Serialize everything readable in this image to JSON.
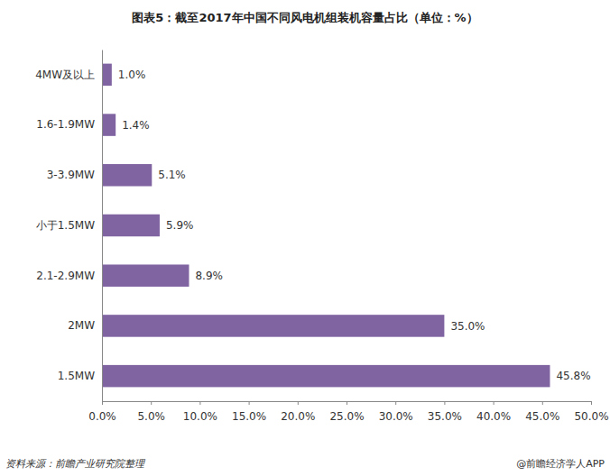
{
  "chart_data": {
    "type": "bar",
    "orientation": "horizontal",
    "title": "图表5：截至2017年中国不同风电机组装机容量占比（单位：%）",
    "categories": [
      "4MW及以上",
      "1.6-1.9MW",
      "3-3.9MW",
      "小于1.5MW",
      "2.1-2.9MW",
      "2MW",
      "1.5MW"
    ],
    "values": [
      1.0,
      1.4,
      5.1,
      5.9,
      8.9,
      35.0,
      45.8
    ],
    "value_labels": [
      "1.0%",
      "1.4%",
      "5.1%",
      "5.9%",
      "8.9%",
      "35.0%",
      "45.8%"
    ],
    "color": "#8064a2",
    "xlim": [
      0,
      50
    ],
    "xticks": [
      {
        "value": 0,
        "label": "0.0%"
      },
      {
        "value": 5,
        "label": "5.0%"
      },
      {
        "value": 10,
        "label": "10.0%"
      },
      {
        "value": 15,
        "label": "15.0%"
      },
      {
        "value": 20,
        "label": "20.0%"
      },
      {
        "value": 25,
        "label": "25.0%"
      },
      {
        "value": 30,
        "label": "30.0%"
      },
      {
        "value": 35,
        "label": "35.0%"
      },
      {
        "value": 40,
        "label": "40.0%"
      },
      {
        "value": 45,
        "label": "45.0%"
      },
      {
        "value": 50,
        "label": "50.0%"
      }
    ],
    "grid": false,
    "data_labels": true,
    "annotations": [
      "资料来源：前瞻产业研究院整理",
      "@前瞻经济学人APP"
    ]
  }
}
